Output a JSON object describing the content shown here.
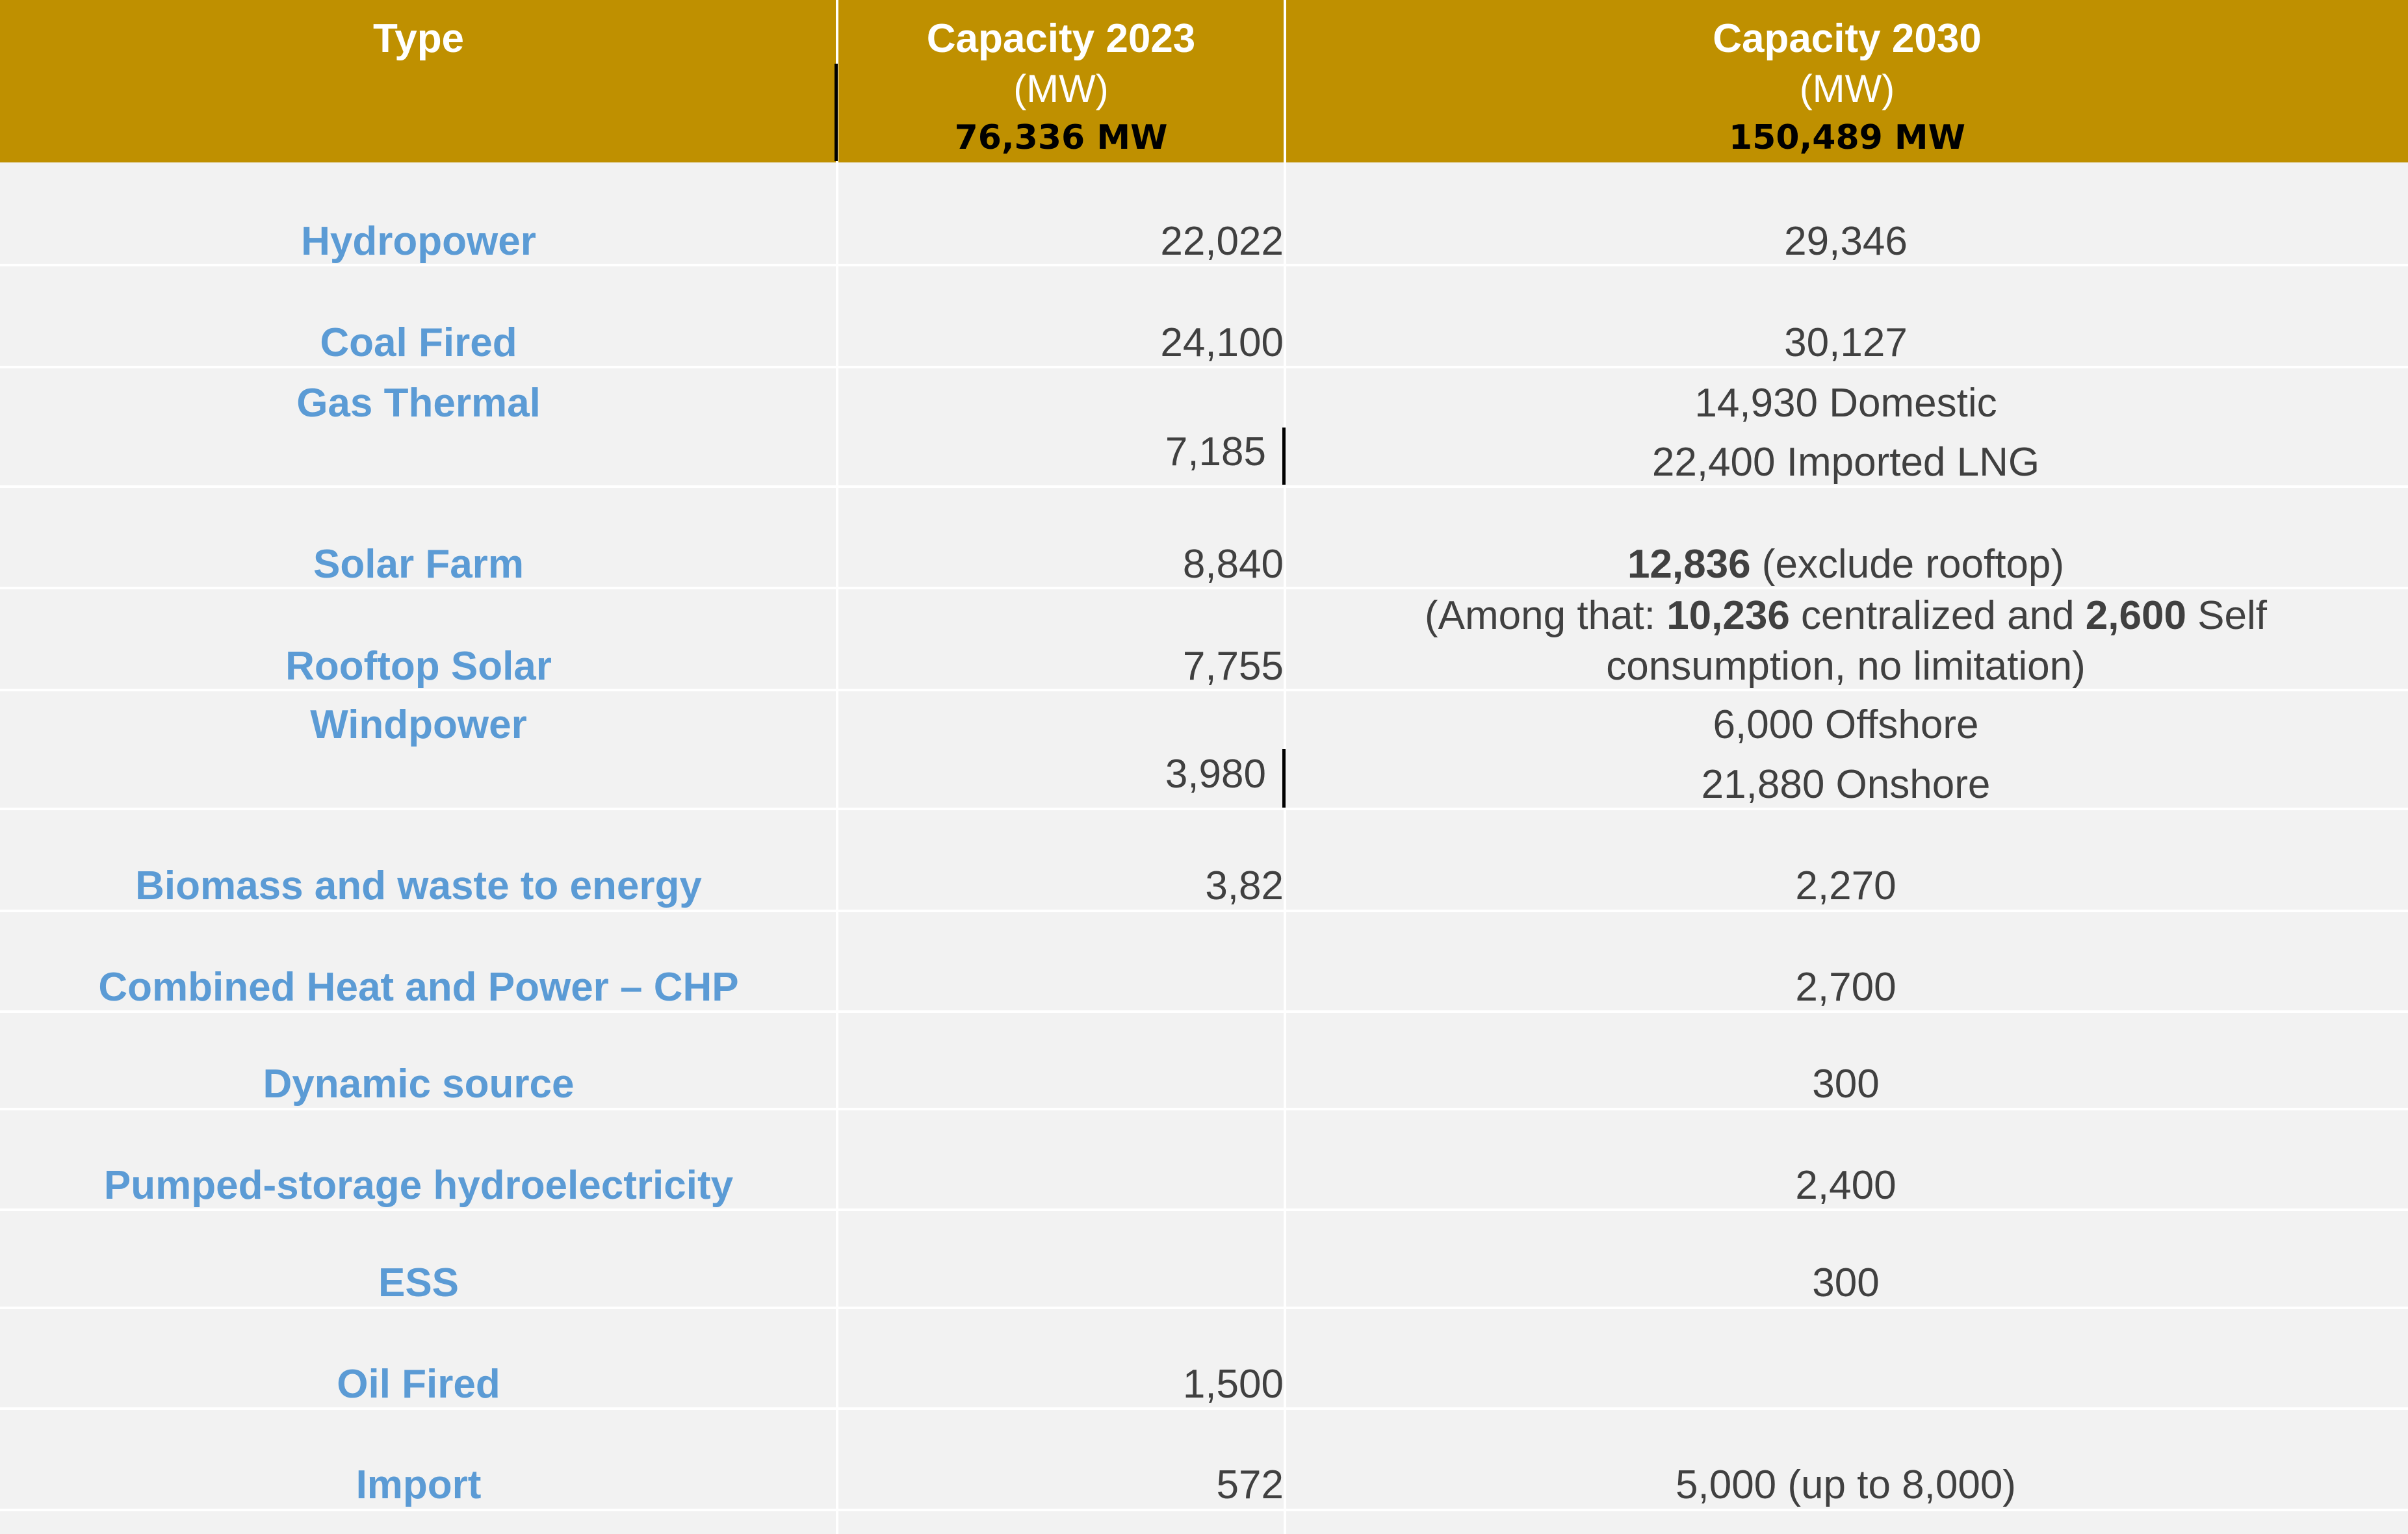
{
  "header": {
    "type_label": "Type",
    "col2023": {
      "title": "Capacity  2023",
      "unit": "(MW)",
      "total": "76,336 MW"
    },
    "col2030": {
      "title": "Capacity  2030",
      "unit": "(MW)",
      "total": "150,489 MW"
    }
  },
  "rows": {
    "hydropower": {
      "type": "Hydropower",
      "v2023": "22,022",
      "v2030": "29,346"
    },
    "coal": {
      "type": "Coal Fired",
      "v2023": "24,100",
      "v2030": "30,127"
    },
    "gas": {
      "type": "Gas Thermal",
      "v2023": "7,185",
      "v2030_a": "14,930 Domestic",
      "v2030_b": "22,400  Imported LNG"
    },
    "solar_farm": {
      "type": "Solar Farm",
      "v2023": "8,840",
      "v2030_bold": "12,836",
      "v2030_rest": " (exclude rooftop)"
    },
    "rooftop": {
      "type": "Rooftop Solar",
      "v2023": "7,755",
      "note_prefix": "(Among that: ",
      "note_num1": "10,236",
      "note_mid": " centralized and ",
      "note_num2": "2,600",
      "note_suffix": " Self",
      "note_line2": "consumption, no limitation)"
    },
    "wind": {
      "type": "Windpower",
      "v2023": "3,980",
      "v2030_a": "6,000 Offshore",
      "v2030_b": "21,880 Onshore"
    },
    "biomass": {
      "type": "Biomass and waste to energy",
      "v2023": "3,82",
      "v2030": "2,270"
    },
    "chp": {
      "type": "Combined Heat and Power – CHP",
      "v2023": "",
      "v2030": "2,700"
    },
    "dynamic": {
      "type": "Dynamic source",
      "v2023": "",
      "v2030": "300"
    },
    "pumped": {
      "type": "Pumped-storage hydroelectricity",
      "v2023": "",
      "v2030": "2,400"
    },
    "ess": {
      "type": "ESS",
      "v2023": "",
      "v2030": "300"
    },
    "oil": {
      "type": "Oil Fired",
      "v2023": "1,500",
      "v2030": ""
    },
    "import": {
      "type": "Import",
      "v2023": "572",
      "v2030": "5,000 (up to 8,000)"
    }
  },
  "colors": {
    "header_bg": "#BF9000",
    "type_text": "#5B9BD5",
    "body_bg": "#F2F2F2",
    "value_text": "#404040"
  }
}
